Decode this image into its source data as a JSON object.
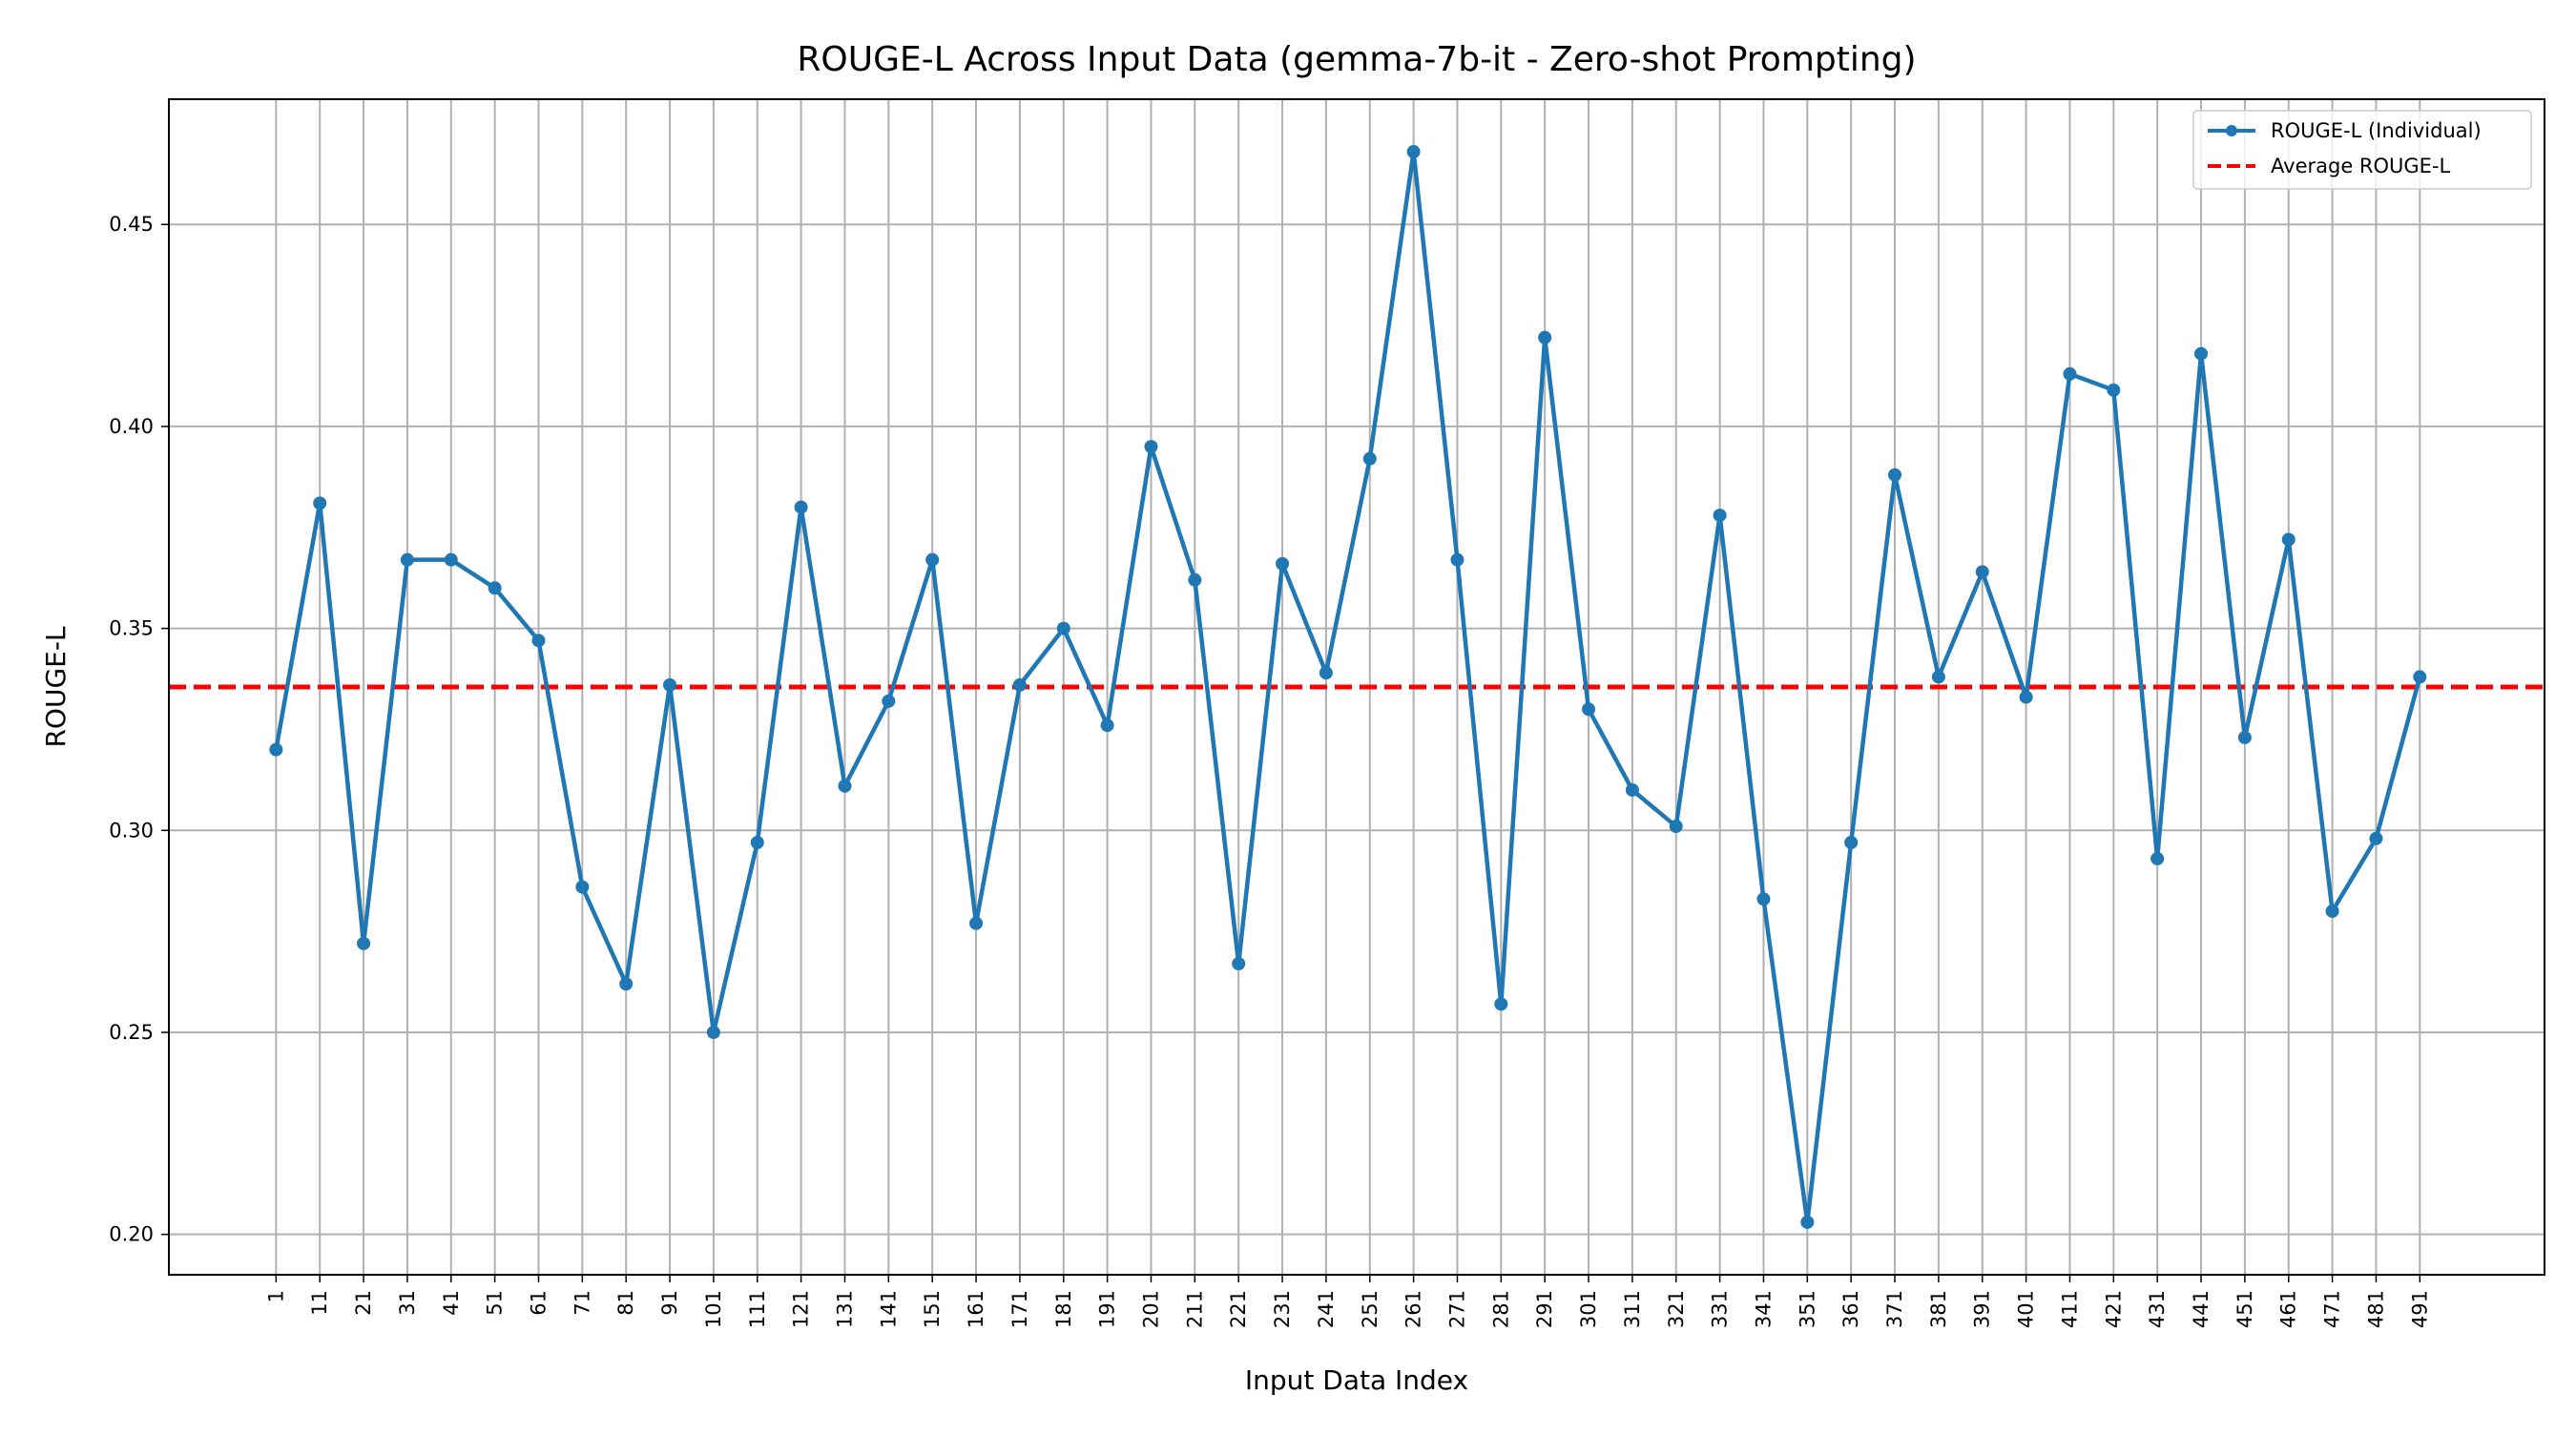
{
  "chart_data": {
    "type": "line",
    "title": "ROUGE-L Across Input Data (gemma-7b-it - Zero-shot Prompting)",
    "xlabel": "Input Data Index",
    "ylabel": "ROUGE-L",
    "x": [
      1,
      11,
      21,
      31,
      41,
      51,
      61,
      71,
      81,
      91,
      101,
      111,
      121,
      131,
      141,
      151,
      161,
      171,
      181,
      191,
      201,
      211,
      221,
      231,
      241,
      251,
      261,
      271,
      281,
      291,
      301,
      311,
      321,
      331,
      341,
      351,
      361,
      371,
      381,
      391,
      401,
      411,
      421,
      431,
      441,
      451,
      461,
      471,
      481,
      491
    ],
    "x_tick_labels": [
      "1",
      "11",
      "21",
      "31",
      "41",
      "51",
      "61",
      "71",
      "81",
      "91",
      "101",
      "111",
      "121",
      "131",
      "141",
      "151",
      "161",
      "171",
      "181",
      "191",
      "201",
      "211",
      "221",
      "231",
      "241",
      "251",
      "261",
      "271",
      "281",
      "291",
      "301",
      "311",
      "321",
      "331",
      "341",
      "351",
      "361",
      "371",
      "381",
      "391",
      "401",
      "411",
      "421",
      "431",
      "441",
      "451",
      "461",
      "471",
      "481",
      "491"
    ],
    "series": [
      {
        "name": "ROUGE-L (Individual)",
        "color": "#1f77b4",
        "style": "solid-with-markers",
        "values": [
          0.32,
          0.381,
          0.272,
          0.367,
          0.367,
          0.36,
          0.347,
          0.286,
          0.262,
          0.336,
          0.25,
          0.297,
          0.38,
          0.311,
          0.332,
          0.367,
          0.277,
          0.336,
          0.35,
          0.326,
          0.395,
          0.362,
          0.267,
          0.366,
          0.339,
          0.392,
          0.468,
          0.367,
          0.257,
          0.422,
          0.33,
          0.31,
          0.301,
          0.378,
          0.283,
          0.203,
          0.297,
          0.388,
          0.338,
          0.364,
          0.333,
          0.413,
          0.409,
          0.293,
          0.418,
          0.323,
          0.372,
          0.28,
          0.298,
          0.338
        ]
      }
    ],
    "average": {
      "name": "Average ROUGE-L",
      "value": 0.3355,
      "color": "#ff0000",
      "style": "dashed"
    },
    "y_ticks": [
      0.2,
      0.25,
      0.3,
      0.35,
      0.4,
      0.45
    ],
    "y_tick_labels": [
      "0.20",
      "0.25",
      "0.30",
      "0.35",
      "0.40",
      "0.45"
    ],
    "ylim": [
      0.19,
      0.481
    ],
    "xlim": [
      -23.5,
      519.5
    ],
    "grid": true,
    "legend_position": "top-right"
  }
}
